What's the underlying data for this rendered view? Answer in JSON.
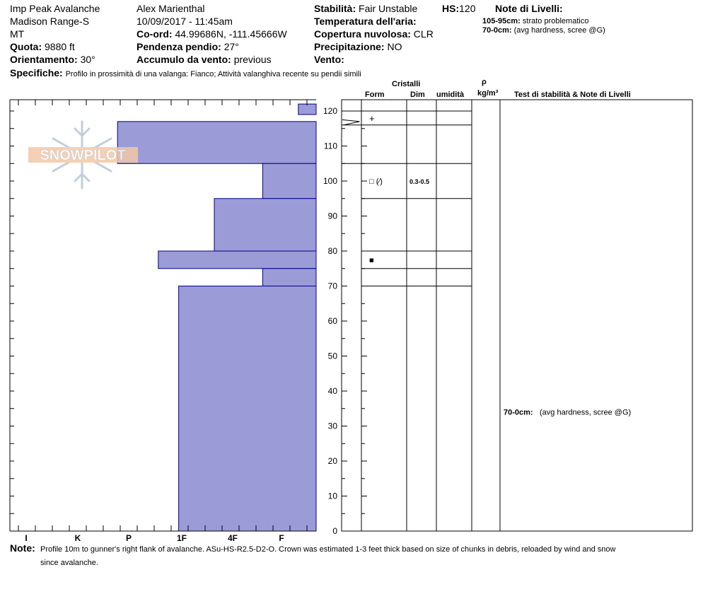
{
  "header": {
    "location": "Imp Peak Avalanche",
    "range": "Madison Range-S",
    "state": "MT",
    "elevation_label": "Quota:",
    "elevation_value": "9880 ft",
    "aspect_label": "Orientamento:",
    "aspect_value": "30°",
    "observer": "Alex Marienthal",
    "datetime": "10/09/2017 - 11:45am",
    "coord_label": "Co-ord:",
    "coord_value": "44.99686N, -111.45666W",
    "slope_label": "Pendenza pendio:",
    "slope_value": "27°",
    "wind_label": "Accumulo da vento:",
    "wind_value": "previous",
    "stability_label": "Stabilità:",
    "stability_value": "Fair Unstable",
    "hs_label": "HS:",
    "hs_value": "120",
    "air_temp_label": "Temperatura dell'aria:",
    "air_temp_value": "",
    "cloud_label": "Copertura nuvolosa:",
    "cloud_value": "CLR",
    "precip_label": "Precipitazione:",
    "precip_value": "NO",
    "vento_label": "Vento:",
    "vento_value": "",
    "layer_notes_title": "Note di Livelli:",
    "layer_notes": [
      {
        "range": "105-95cm:",
        "text": "strato problematico"
      },
      {
        "range": "70-0cm:",
        "text": "(avg hardness, scree @G)"
      }
    ],
    "specifics_label": "Specifiche:",
    "specifics_value": "Profilo in prossimità di una valanga: Fianco; Attività valanghiva recente su pendii simili"
  },
  "columns": {
    "cristalli": "Cristalli",
    "form": "Form",
    "dim": "Dim",
    "umidita": "umidità",
    "rho": "ρ",
    "density_unit": "kg/m³",
    "stability_notes": "Test di stabilità & Note di Livelli"
  },
  "crystal_rows": [
    {
      "depth": 118,
      "form": "+",
      "dim": ""
    },
    {
      "depth": 100,
      "form": "□ (⁄)",
      "dim": "0.3-0.5"
    },
    {
      "depth": 77.5,
      "form": "■",
      "dim": ""
    }
  ],
  "stability_note": {
    "range": "70-0cm:",
    "text": "(avg hardness, scree @G)",
    "depth": 34
  },
  "watermark": "SNOWPILOT",
  "note_label": "Note:",
  "note_text_1": "Profile 10m to gunner's right flank of avalanche. ASu-HS-R2.5-D2-O. Crown was estimated 1-3 feet thick based on size of chunks in debris, reloaded by wind and snow",
  "note_text_2": "since avalanche.",
  "colors": {
    "hardness_fill": "#9b9bd7",
    "hardness_stroke": "#00008b"
  },
  "chart_data": {
    "type": "bar",
    "orientation": "horizontal",
    "xlabel": "",
    "ylabel": "",
    "ylim": [
      0,
      120
    ],
    "y_ticks": [
      0,
      10,
      20,
      30,
      40,
      50,
      60,
      70,
      80,
      90,
      100,
      110,
      120
    ],
    "hardness_scale": [
      "I",
      "K",
      "P",
      "1F",
      "4F",
      "F"
    ],
    "layers": [
      {
        "top": 122,
        "bottom": 119,
        "hardness": "F-",
        "hardness_index": 0.35
      },
      {
        "top": 117,
        "bottom": 105,
        "hardness": "P-",
        "hardness_index": 3.9
      },
      {
        "top": 105,
        "bottom": 95,
        "hardness": "F+",
        "hardness_index": 1.05
      },
      {
        "top": 95,
        "bottom": 80,
        "hardness": "4F",
        "hardness_index": 2.0
      },
      {
        "top": 80,
        "bottom": 75,
        "hardness": "1F+",
        "hardness_index": 3.1
      },
      {
        "top": 75,
        "bottom": 70,
        "hardness": "F+",
        "hardness_index": 1.05
      },
      {
        "top": 70,
        "bottom": 0,
        "hardness": "1F",
        "hardness_index": 2.7
      }
    ],
    "layer_boundaries": [
      120,
      116,
      105,
      95,
      80,
      75,
      70
    ],
    "temperature_profile": [
      [
        -0.5,
        117
      ],
      [
        -5,
        116
      ]
    ]
  }
}
